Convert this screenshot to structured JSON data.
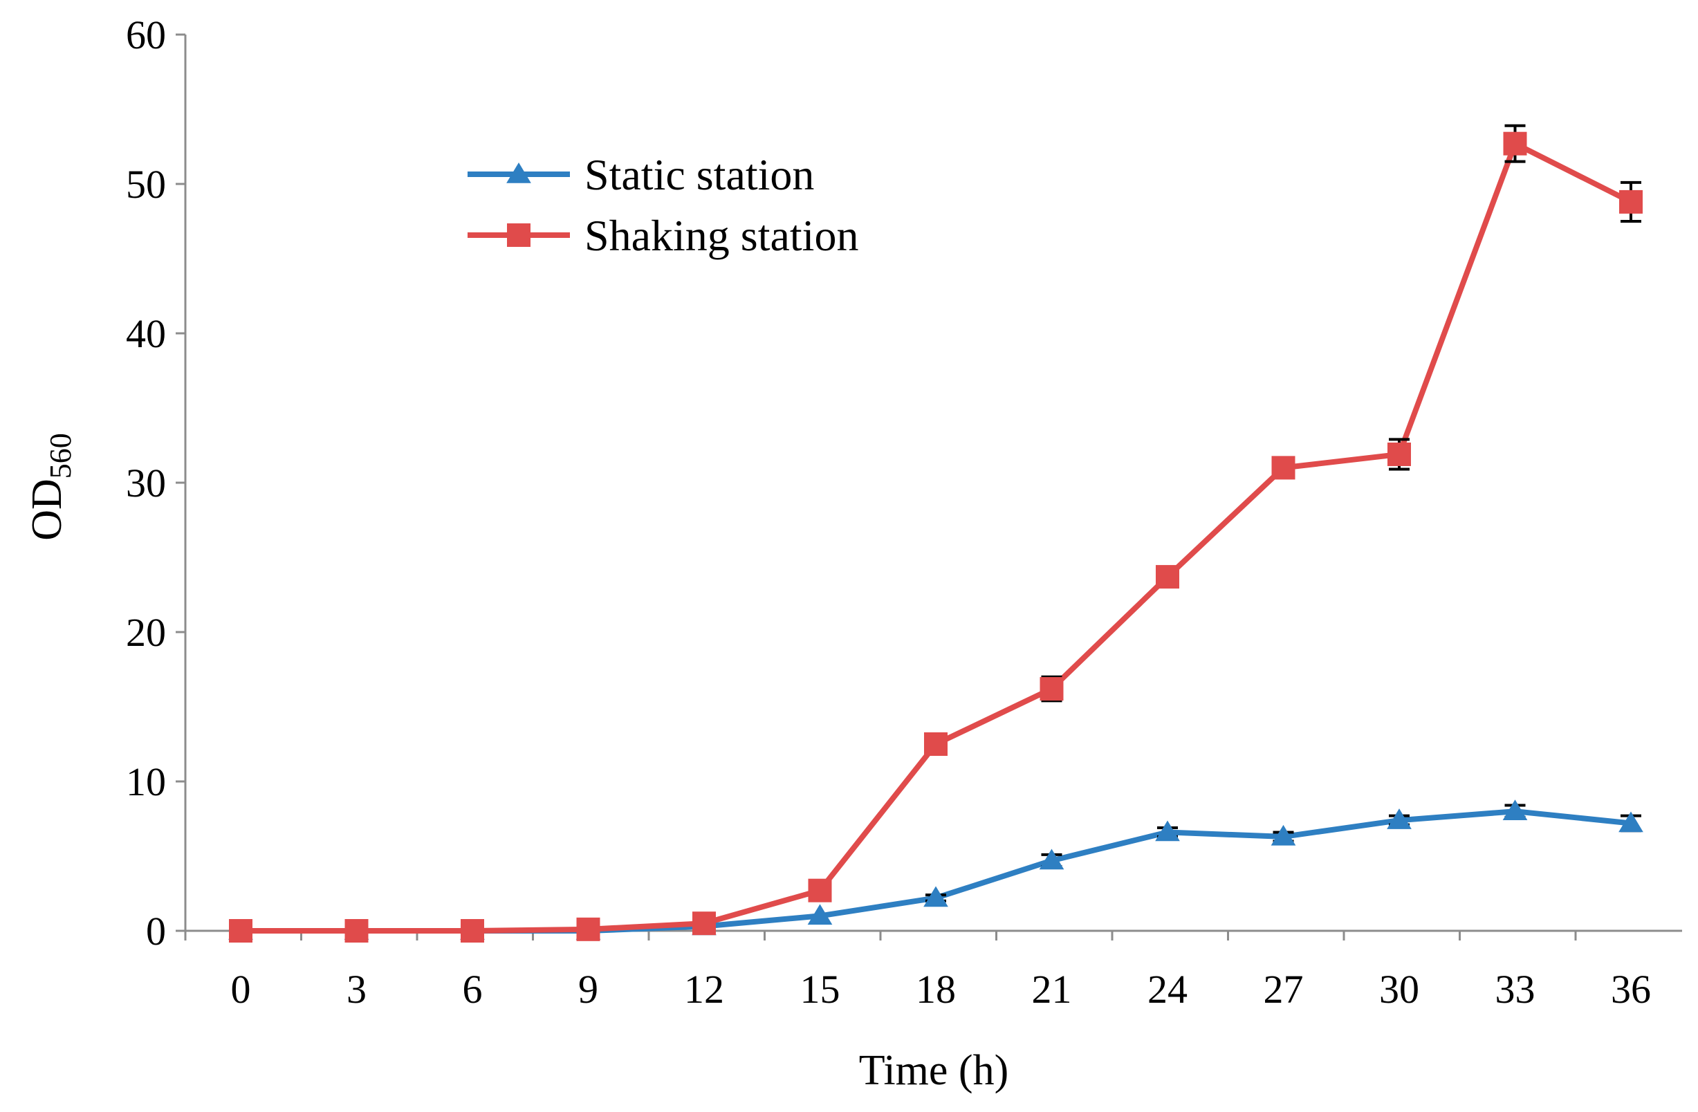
{
  "chart_data": {
    "type": "line",
    "xlabel": "Time (h)",
    "ylabel": {
      "main": "OD",
      "subscript": "560"
    },
    "x": [
      0,
      3,
      6,
      9,
      12,
      15,
      18,
      21,
      24,
      27,
      30,
      33,
      36
    ],
    "x_tick_labels": [
      "0",
      "3",
      "6",
      "9",
      "12",
      "15",
      "18",
      "21",
      "24",
      "27",
      "30",
      "33",
      "36"
    ],
    "y_tick_labels": [
      "0",
      "10",
      "20",
      "30",
      "40",
      "50",
      "60"
    ],
    "ylim": [
      0,
      60
    ],
    "grid": false,
    "legend_position": "top-center",
    "series": [
      {
        "name": "Static station",
        "marker": "triangle",
        "color": "#2e7fc2",
        "values": [
          0,
          0,
          0,
          0,
          0.3,
          1.0,
          2.2,
          4.7,
          6.6,
          6.3,
          7.4,
          8.0,
          7.2
        ],
        "errors": [
          0,
          0,
          0,
          0,
          0,
          0,
          0.2,
          0.4,
          0.3,
          0.3,
          0.3,
          0.4,
          0.5
        ]
      },
      {
        "name": "Shaking station",
        "marker": "square",
        "color": "#e04b4b",
        "values": [
          0,
          0,
          0,
          0.1,
          0.5,
          2.7,
          12.5,
          16.2,
          23.7,
          31.0,
          31.9,
          52.7,
          48.8
        ],
        "errors": [
          0,
          0,
          0,
          0,
          0,
          0.3,
          0.4,
          0.8,
          0.5,
          0.4,
          1.0,
          1.2,
          1.3
        ]
      }
    ]
  }
}
